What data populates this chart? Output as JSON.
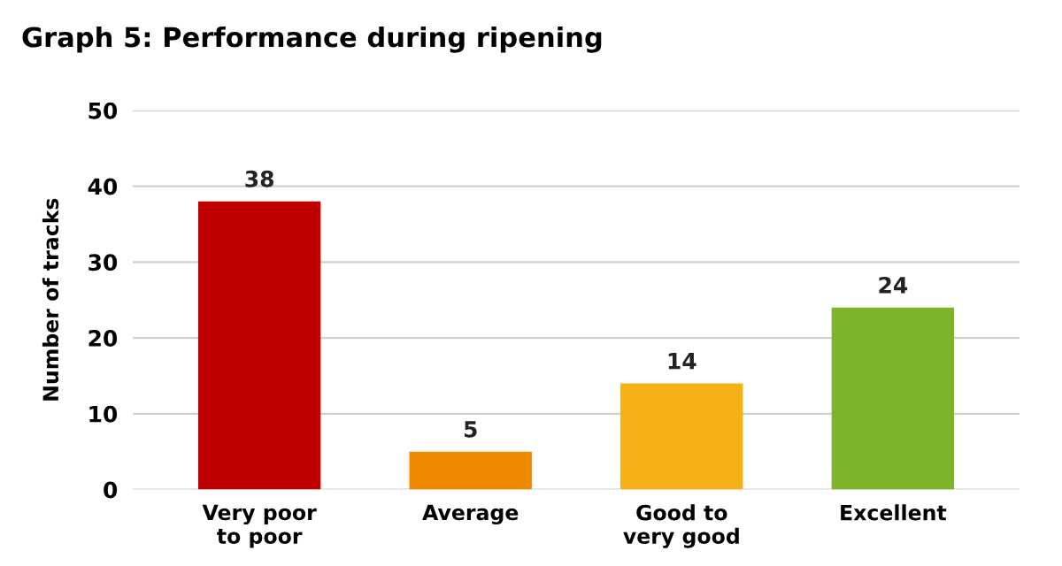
{
  "chart_data": {
    "type": "bar",
    "title": "Graph 5: Performance during ripening",
    "ylabel": "Number of tracks",
    "categories": [
      "Very poor\nto poor",
      "Average",
      "Good to\nvery good",
      "Excellent"
    ],
    "values": [
      38,
      5,
      14,
      24
    ],
    "colors": [
      "#c00000",
      "#ef8a00",
      "#f4b014",
      "#7db42a"
    ],
    "ylim": [
      0,
      50
    ],
    "yticks": [
      0,
      10,
      20,
      30,
      40,
      50
    ],
    "grid": "y",
    "data_labels": true
  }
}
